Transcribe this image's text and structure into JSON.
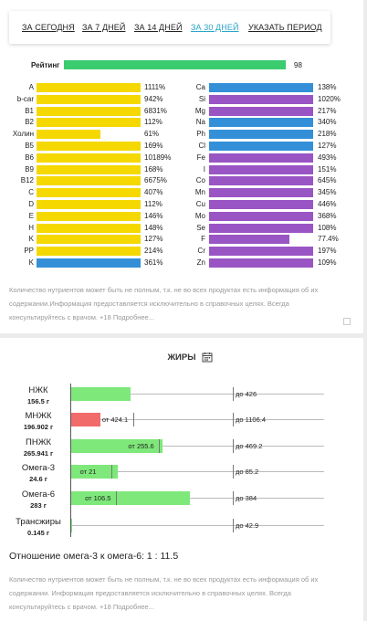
{
  "periods": [
    "ЗА СЕГОДНЯ",
    "ЗА 7 ДНЕЙ",
    "ЗА 14 ДНЕЙ",
    "ЗА 30 ДНЕЙ",
    "УКАЗАТЬ ПЕРИОД"
  ],
  "active_period": "ЗА 30 ДНЕЙ",
  "rating": {
    "label": "Рейтинг",
    "value": "98",
    "fraction": 0.98
  },
  "colors": {
    "yellow": "#f5d800",
    "blue": "#3390d8",
    "purple": "#9a55c5",
    "green": "#3acc6e",
    "bright_green": "#7ee87a",
    "red": "#f26b6b",
    "link_active": "#2aa6c7"
  },
  "vitamins": [
    {
      "label": "A",
      "value": "1111%",
      "fill": 1.0,
      "color": "yellow"
    },
    {
      "label": "b-car",
      "value": "942%",
      "fill": 1.0,
      "color": "yellow"
    },
    {
      "label": "B1",
      "value": "6831%",
      "fill": 1.0,
      "color": "yellow"
    },
    {
      "label": "B2",
      "value": "112%",
      "fill": 1.0,
      "color": "yellow"
    },
    {
      "label": "Холин",
      "value": "61%",
      "fill": 0.61,
      "color": "yellow"
    },
    {
      "label": "B5",
      "value": "169%",
      "fill": 1.0,
      "color": "yellow"
    },
    {
      "label": "B6",
      "value": "10189%",
      "fill": 1.0,
      "color": "yellow"
    },
    {
      "label": "B9",
      "value": "168%",
      "fill": 1.0,
      "color": "yellow"
    },
    {
      "label": "B12",
      "value": "6675%",
      "fill": 1.0,
      "color": "yellow"
    },
    {
      "label": "C",
      "value": "407%",
      "fill": 1.0,
      "color": "yellow"
    },
    {
      "label": "D",
      "value": "112%",
      "fill": 1.0,
      "color": "yellow"
    },
    {
      "label": "E",
      "value": "146%",
      "fill": 1.0,
      "color": "yellow"
    },
    {
      "label": "H",
      "value": "148%",
      "fill": 1.0,
      "color": "yellow"
    },
    {
      "label": "K",
      "value": "127%",
      "fill": 1.0,
      "color": "yellow"
    },
    {
      "label": "PP",
      "value": "214%",
      "fill": 1.0,
      "color": "yellow"
    },
    {
      "label": "K",
      "value": "361%",
      "fill": 1.0,
      "color": "blue"
    }
  ],
  "minerals": [
    {
      "label": "Ca",
      "value": "138%",
      "fill": 1.0,
      "color": "blue"
    },
    {
      "label": "Si",
      "value": "1020%",
      "fill": 1.0,
      "color": "purple"
    },
    {
      "label": "Mg",
      "value": "217%",
      "fill": 1.0,
      "color": "purple"
    },
    {
      "label": "Na",
      "value": "340%",
      "fill": 1.0,
      "color": "blue"
    },
    {
      "label": "Ph",
      "value": "218%",
      "fill": 1.0,
      "color": "blue"
    },
    {
      "label": "Cl",
      "value": "127%",
      "fill": 1.0,
      "color": "blue"
    },
    {
      "label": "Fe",
      "value": "493%",
      "fill": 1.0,
      "color": "purple"
    },
    {
      "label": "I",
      "value": "151%",
      "fill": 1.0,
      "color": "purple"
    },
    {
      "label": "Co",
      "value": "645%",
      "fill": 1.0,
      "color": "purple"
    },
    {
      "label": "Mn",
      "value": "345%",
      "fill": 1.0,
      "color": "purple"
    },
    {
      "label": "Cu",
      "value": "446%",
      "fill": 1.0,
      "color": "purple"
    },
    {
      "label": "Mo",
      "value": "368%",
      "fill": 1.0,
      "color": "purple"
    },
    {
      "label": "Se",
      "value": "108%",
      "fill": 1.0,
      "color": "purple"
    },
    {
      "label": "F",
      "value": "77.4%",
      "fill": 0.774,
      "color": "purple"
    },
    {
      "label": "Cr",
      "value": "197%",
      "fill": 1.0,
      "color": "purple"
    },
    {
      "label": "Zn",
      "value": "109%",
      "fill": 1.0,
      "color": "purple"
    }
  ],
  "disclaimer1": "Количество нутриентов может быть не полным, т.к. не во всех продуктах есть информация об их содержании.Информация предоставляется исключительно в справочных целях. Всегда консультируйтесь с врачом. +18 Подробнее...",
  "fats": {
    "title": "ЖИРЫ",
    "calendar_icon": "calendar-icon",
    "rows": [
      {
        "name": "НЖК",
        "amount": "156.5 г",
        "color": "bright_green",
        "value": 156.5,
        "low": "",
        "high": "до 426",
        "high_val": 426
      },
      {
        "name": "МНЖК",
        "amount": "196.902 г",
        "color": "red",
        "value": 196.902,
        "low": "от 424.1",
        "low_val": 424.1,
        "high": "до 1106.4",
        "high_val": 1106.4
      },
      {
        "name": "ПНЖК",
        "amount": "265.941 г",
        "color": "bright_green",
        "value": 265.941,
        "low": "от 255.6",
        "low_val": 255.6,
        "high": "до 469.2",
        "high_val": 469.2
      },
      {
        "name": "Омега-3",
        "amount": "24.6 г",
        "color": "bright_green",
        "value": 24.6,
        "low": "от 21",
        "low_val": 21,
        "high": "до 85.2",
        "high_val": 85.2
      },
      {
        "name": "Омега-6",
        "amount": "283 г",
        "color": "bright_green",
        "value": 283,
        "low": "от 106.5",
        "low_val": 106.5,
        "high": "до 384",
        "high_val": 384
      },
      {
        "name": "Трансжиры",
        "amount": "0.145 г",
        "color": "bright_green",
        "value": 0.145,
        "low": "",
        "high": "до 42.9",
        "high_val": 42.9
      }
    ],
    "ratio_text": "Отношение омега-3 к омега-6: 1 : 11.5"
  },
  "disclaimer2": "Количество нутриентов может быть не полным, т.к. не во всех продуктах есть информация об их содержании. Информация предоставляется исключительно в справочных целях. Всегда консультируйтесь с врачом. +18 Подробнее..."
}
